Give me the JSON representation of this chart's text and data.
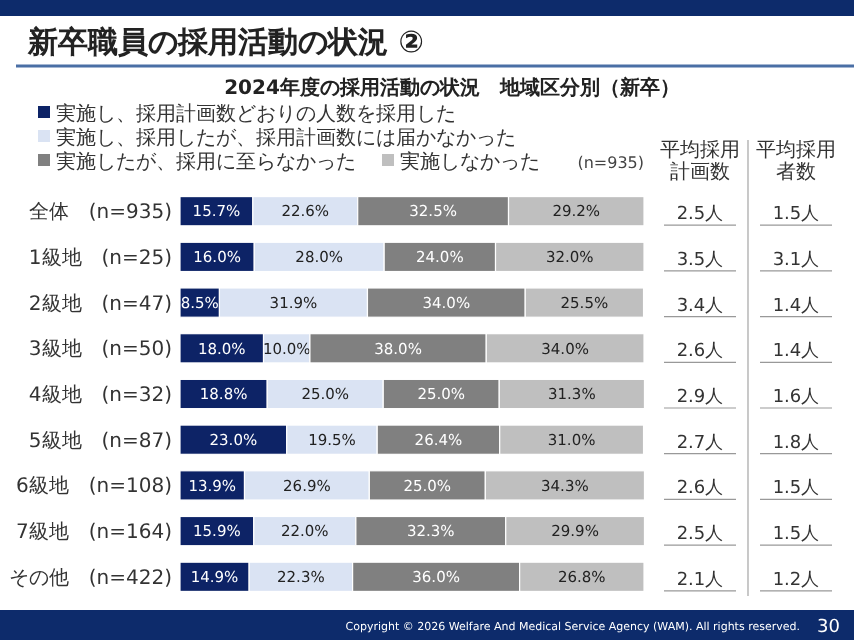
{
  "chart_data": {
    "type": "bar",
    "orientation": "horizontal",
    "stacked": true,
    "title": "新卒職員の採用活動の状況 ②",
    "subtitle": "2024年度の採用活動の状況　地域区分別（新卒）",
    "categories": [
      "全体　(n=935)",
      "1級地　(n=25)",
      "2級地　(n=47)",
      "3級地　(n=50)",
      "4級地　(n=32)",
      "5級地　(n=87)",
      "6級地　(n=108)",
      "7級地　(n=164)",
      "その他　(n=422)"
    ],
    "series": [
      {
        "name": "実施し、採用計画数どおりの人数を採用した",
        "color": "#0d2366",
        "values": [
          15.7,
          16.0,
          8.5,
          18.0,
          18.8,
          23.0,
          13.9,
          15.9,
          14.9
        ],
        "value_labels": [
          "15.7%",
          "16.0%",
          "8.5%",
          "18.0%",
          "18.8%",
          "23.0%",
          "13.9%",
          "15.9%",
          "14.9%"
        ]
      },
      {
        "name": "実施し、採用したが、採用計画数には届かなかった",
        "color": "#dae3f3",
        "values": [
          22.6,
          28.0,
          31.9,
          10.0,
          25.0,
          19.5,
          26.9,
          22.0,
          22.3
        ],
        "value_labels": [
          "22.6%",
          "28.0%",
          "31.9%",
          "10.0%",
          "25.0%",
          "19.5%",
          "26.9%",
          "22.0%",
          "22.3%"
        ]
      },
      {
        "name": "実施したが、採用に至らなかった",
        "color": "#808080",
        "values": [
          32.5,
          24.0,
          34.0,
          38.0,
          25.0,
          26.4,
          25.0,
          32.3,
          36.0
        ],
        "value_labels": [
          "32.5%",
          "24.0%",
          "34.0%",
          "38.0%",
          "25.0%",
          "26.4%",
          "25.0%",
          "32.3%",
          "36.0%"
        ]
      },
      {
        "name": "実施しなかった",
        "color": "#bfbfbf",
        "values": [
          29.2,
          32.0,
          25.5,
          34.0,
          31.3,
          31.0,
          34.3,
          29.9,
          26.8
        ],
        "value_labels": [
          "29.2%",
          "32.0%",
          "25.5%",
          "34.0%",
          "31.3%",
          "31.0%",
          "34.3%",
          "29.9%",
          "26.8%"
        ]
      }
    ],
    "xlim": [
      0,
      100
    ],
    "legend": "top",
    "annotations": [
      "(n=935)",
      "平均採用計画数",
      "平均採用者数",
      "2.5人",
      "1.5人",
      "3.5人",
      "3.1人",
      "3.4人",
      "1.4人",
      "2.6人",
      "1.4人",
      "2.9人",
      "1.6人",
      "2.7人",
      "1.8人",
      "2.6人",
      "1.5人",
      "2.5人",
      "1.5人",
      "2.1人",
      "1.2人",
      "Copyright © 2026 Welfare And Medical Service Agency (WAM). All rights reserved.",
      "30"
    ]
  }
}
